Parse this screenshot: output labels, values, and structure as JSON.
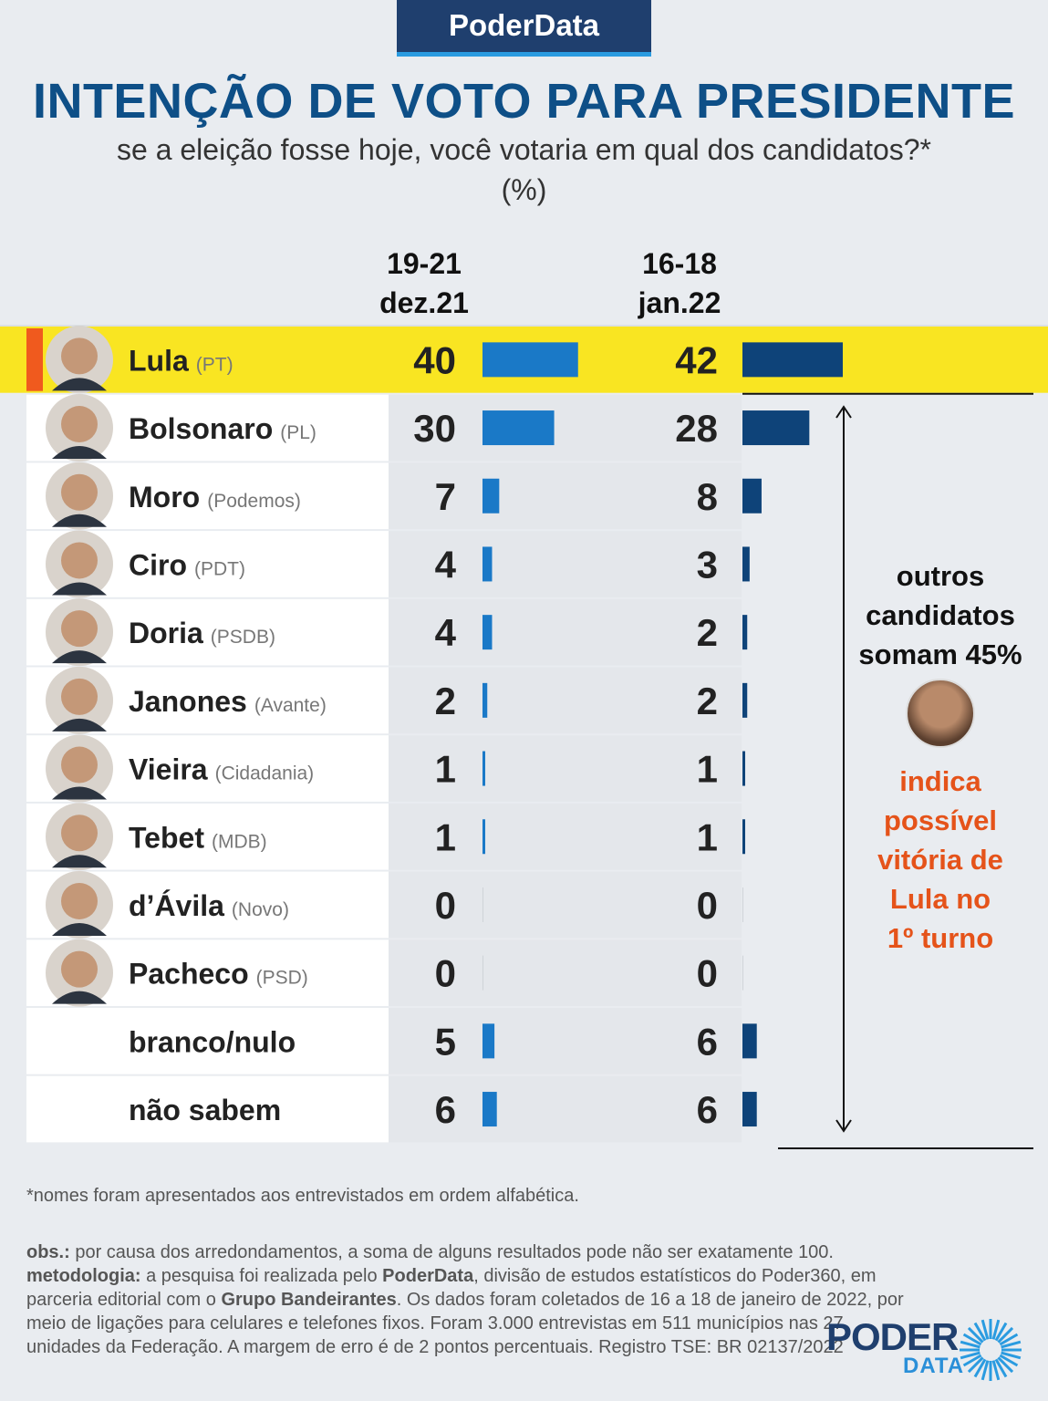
{
  "brand": "PoderData",
  "title": "INTENÇÃO DE VOTO PARA PRESIDENTE",
  "subtitle": "se a eleição fosse hoje, você votaria em qual dos candidatos?*",
  "unit": "(%)",
  "side": {
    "others_line1": "outros",
    "others_line2": "candidatos",
    "others_line3": "somam 45%",
    "indicates_line1": "indica",
    "indicates_line2": "possível",
    "indicates_line3": "vitória de",
    "indicates_line4": "Lula no",
    "indicates_line5": "1º turno"
  },
  "footnote": "*nomes foram apresentados aos entrevistados em ordem alfabética.",
  "methodology": {
    "obs_label": "obs.:",
    "obs_text": " por causa dos arredondamentos, a soma de alguns resultados pode não ser exatamente 100.",
    "met_label": "metodologia:",
    "met_text_1": " a pesquisa foi realizada pelo ",
    "met_brand": "PoderData",
    "met_text_2": ", divisão de estudos estatísticos do Poder360, em parceria editorial com o ",
    "met_partner": "Grupo Bandeirantes",
    "met_text_3": ". Os dados foram coletados de 16 a 18 de janeiro de 2022, por meio de ligações para celulares e telefones fixos. Foram 3.000 entrevistas em 511 municípios nas 27 unidades da Federação. A margem de erro é de 2 pontos percentuais.  Registro TSE: BR 02137/2022"
  },
  "logo": {
    "word": "PODER",
    "sub": "DATA"
  },
  "chart_data": {
    "type": "bar",
    "series": [
      {
        "name": "19-21 dez.21",
        "line1": "19-21",
        "line2": "dez.21",
        "color": "#1a79c7",
        "values": [
          40,
          30,
          7,
          4,
          4,
          2,
          1,
          1,
          0,
          0,
          5,
          6
        ]
      },
      {
        "name": "16-18 jan.22",
        "line1": "16-18",
        "line2": "jan.22",
        "color": "#0e4379",
        "values": [
          42,
          28,
          8,
          3,
          2,
          2,
          1,
          1,
          0,
          0,
          6,
          6
        ]
      }
    ],
    "categories": [
      {
        "name": "Lula",
        "party": "(PT)",
        "photo": true,
        "highlight": true
      },
      {
        "name": "Bolsonaro",
        "party": "(PL)",
        "photo": true
      },
      {
        "name": "Moro",
        "party": "(Podemos)",
        "photo": true
      },
      {
        "name": "Ciro",
        "party": "(PDT)",
        "photo": true
      },
      {
        "name": "Doria",
        "party": "(PSDB)",
        "photo": true
      },
      {
        "name": "Janones",
        "party": "(Avante)",
        "photo": true
      },
      {
        "name": "Vieira",
        "party": "(Cidadania)",
        "photo": true
      },
      {
        "name": "Tebet",
        "party": "(MDB)",
        "photo": true
      },
      {
        "name": "d’Ávila",
        "party": "(Novo)",
        "photo": true
      },
      {
        "name": "Pacheco",
        "party": "(PSD)",
        "photo": true
      },
      {
        "name": "branco/nulo",
        "party": "",
        "photo": false
      },
      {
        "name": "não sabem",
        "party": "",
        "photo": false
      }
    ],
    "highlight_color": "#f9e522",
    "highlight_marker_color": "#f05a1e",
    "xlim": [
      0,
      42
    ]
  }
}
